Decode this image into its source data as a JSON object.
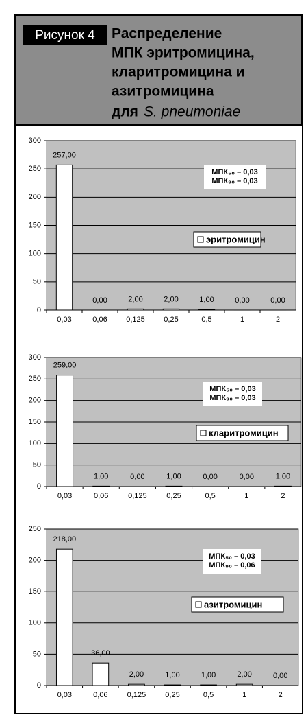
{
  "figure": {
    "label": "Рисунок 4",
    "title_lines": [
      "Распределение",
      "МПК эритромицина,",
      "кларитромицина и",
      "азитромицина"
    ],
    "title_last": "для",
    "title_italic": "S. pneumoniae"
  },
  "chart_data": [
    {
      "type": "bar",
      "categories": [
        "0,03",
        "0,06",
        "0,125",
        "0,25",
        "0,5",
        "1",
        "2"
      ],
      "series": [
        {
          "name": "эритромицин",
          "color": "#ffffff",
          "values": [
            257,
            0,
            2,
            2,
            1,
            0,
            0
          ],
          "value_labels": [
            "257,00",
            "0,00",
            "2,00",
            "2,00",
            "1,00",
            "0,00",
            "0,00"
          ]
        }
      ],
      "ylim": [
        0,
        300
      ],
      "yticks": [
        0,
        50,
        100,
        150,
        200,
        250,
        300
      ],
      "grid": true,
      "annotations": [
        "МПК₅₀ – 0,03",
        "МПК₉₀ – 0,03"
      ]
    },
    {
      "type": "bar",
      "categories": [
        "0,03",
        "0,06",
        "0,125",
        "0,25",
        "0,5",
        "1",
        "2"
      ],
      "series": [
        {
          "name": "кларитромицин",
          "color": "#ffffff",
          "values": [
            259,
            1,
            0,
            1,
            0,
            0,
            1
          ],
          "value_labels": [
            "259,00",
            "1,00",
            "0,00",
            "1,00",
            "0,00",
            "0,00",
            "1,00"
          ]
        }
      ],
      "ylim": [
        0,
        300
      ],
      "yticks": [
        0,
        50,
        100,
        150,
        200,
        250,
        300
      ],
      "grid": true,
      "annotations": [
        "МПК₅₀ – 0,03",
        "МПК₉₀ – 0,03"
      ]
    },
    {
      "type": "bar",
      "categories": [
        "0,03",
        "0,06",
        "0,125",
        "0,25",
        "0,5",
        "1",
        "2"
      ],
      "series": [
        {
          "name": "азитромицин",
          "color": "#ffffff",
          "values": [
            218,
            36,
            2,
            1,
            1,
            2,
            0
          ],
          "value_labels": [
            "218,00",
            "36,00",
            "2,00",
            "1,00",
            "1,00",
            "2,00",
            "0,00"
          ]
        }
      ],
      "ylim": [
        0,
        250
      ],
      "yticks": [
        0,
        50,
        100,
        150,
        200,
        250
      ],
      "grid": true,
      "annotations": [
        "МПК₅₀ – 0,03",
        "МПК₉₀ – 0,06"
      ]
    }
  ]
}
